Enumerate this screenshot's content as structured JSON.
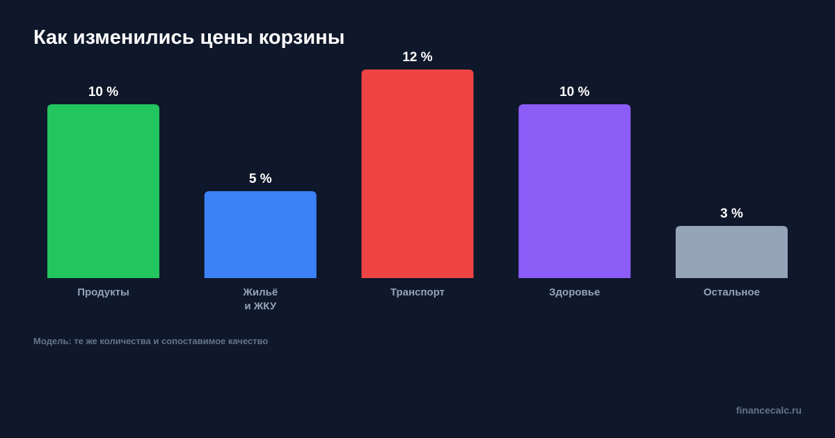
{
  "chart_data": {
    "type": "bar",
    "title": "Как изменились цены корзины",
    "categories": [
      "Продукты",
      "Жильё\nи ЖКУ",
      "Транспорт",
      "Здоровье",
      "Остальное"
    ],
    "values": [
      10,
      5,
      12,
      10,
      3
    ],
    "value_labels": [
      "10 %",
      "5 %",
      "12 %",
      "10 %",
      "3 %"
    ],
    "colors": [
      "#22c55e",
      "#3b82f6",
      "#ef4444",
      "#8b5cf6",
      "#94a3b8"
    ],
    "xlabel": "",
    "ylabel": "",
    "ylim": [
      0,
      12
    ],
    "grid": false,
    "legend": "none"
  },
  "note": "Модель: те же количества и сопоставимое качество",
  "source": "financecalc.ru"
}
